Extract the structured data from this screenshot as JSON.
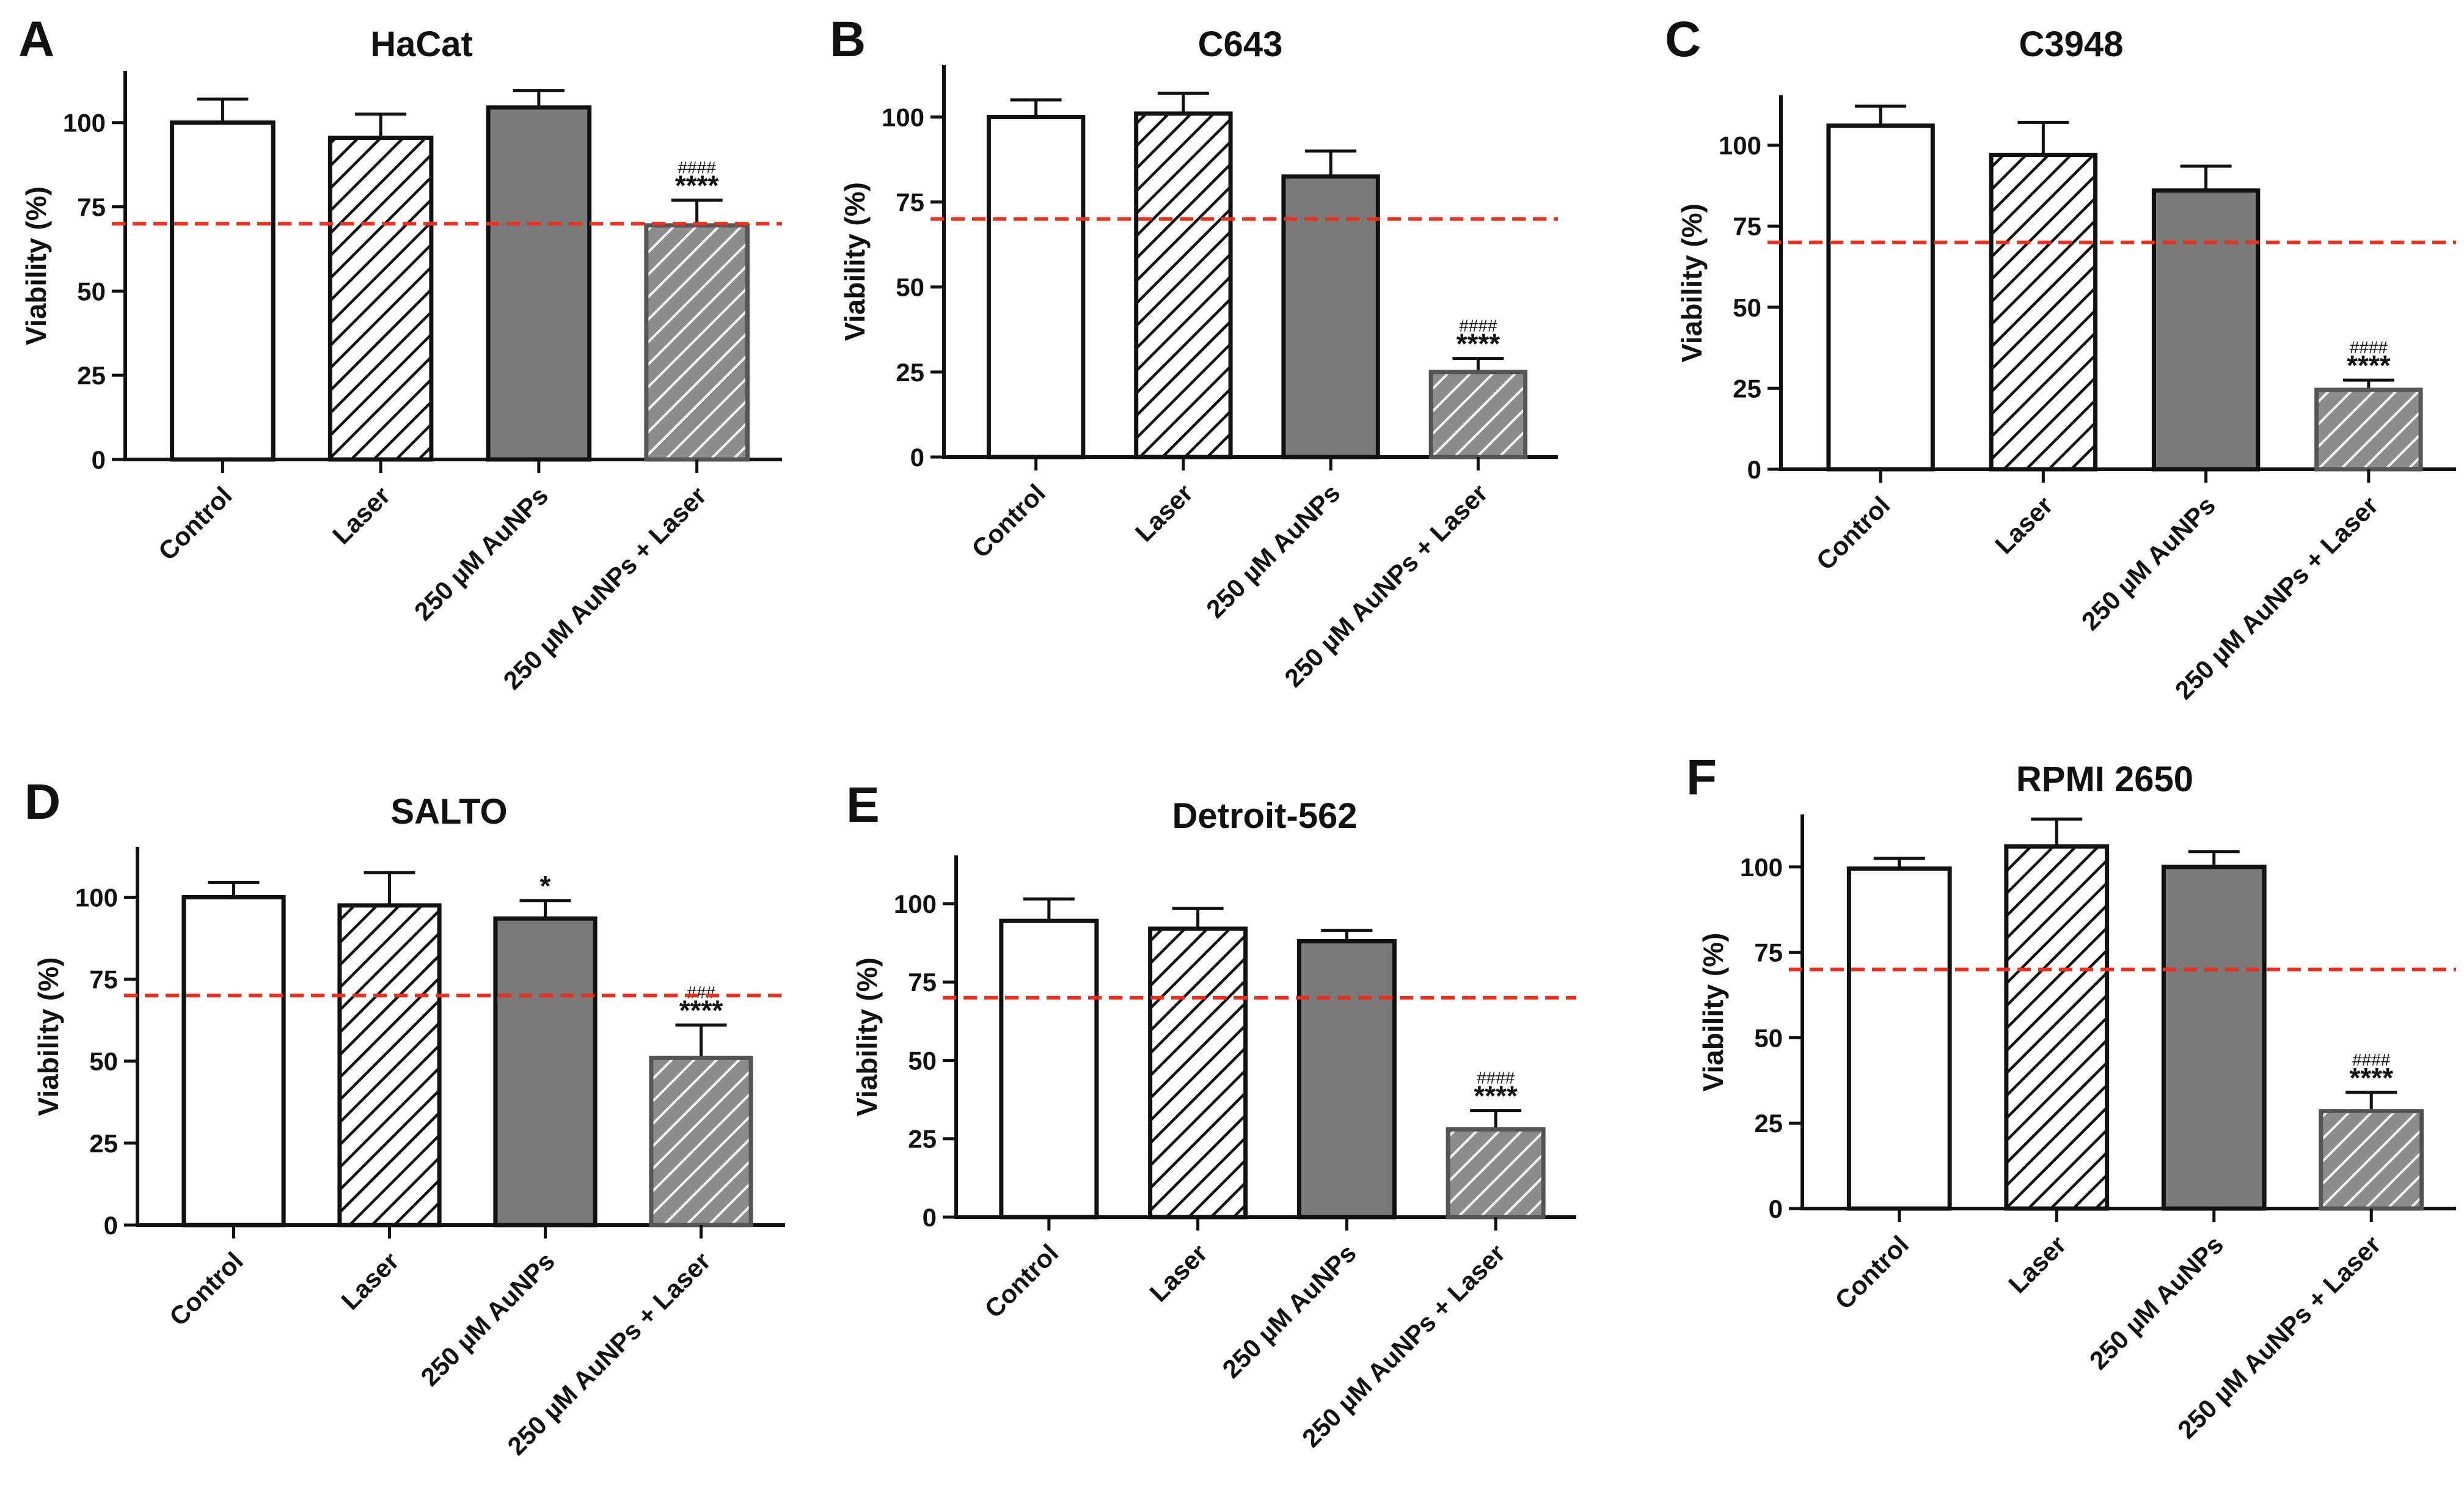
{
  "chart_data": [
    {
      "letter": "A",
      "title": "HaCat",
      "type": "bar",
      "ylabel": "Viability (%)",
      "ylim": [
        0,
        115
      ],
      "yticks": [
        0,
        25,
        50,
        75,
        100
      ],
      "threshold": 70,
      "categories": [
        "Control",
        "Laser",
        "250 µM AuNPs",
        "250 µM AuNPs + Laser"
      ],
      "values": [
        100,
        95.5,
        104.5,
        69.5
      ],
      "errors": [
        7,
        7,
        5,
        7.5
      ],
      "annotations": [
        "",
        "",
        "",
        "****"
      ],
      "hash_annotations": [
        "",
        "",
        "",
        "####"
      ],
      "fills": [
        "white",
        "hatch-white",
        "solid-gray",
        "hatch-gray"
      ]
    },
    {
      "letter": "B",
      "title": "C643",
      "type": "bar",
      "ylabel": "Viability (%)",
      "ylim": [
        0,
        115
      ],
      "yticks": [
        0,
        25,
        50,
        75,
        100
      ],
      "threshold": 70,
      "categories": [
        "Control",
        "Laser",
        "250 µM AuNPs",
        "250 µM AuNPs + Laser"
      ],
      "values": [
        100,
        101,
        82.5,
        25
      ],
      "errors": [
        5,
        6,
        7.5,
        4
      ],
      "annotations": [
        "",
        "",
        "",
        "****"
      ],
      "hash_annotations": [
        "",
        "",
        "",
        "####"
      ],
      "fills": [
        "white",
        "hatch-white",
        "solid-gray",
        "hatch-gray"
      ]
    },
    {
      "letter": "C",
      "title": "C3948",
      "type": "bar",
      "ylabel": "Viability (%)",
      "ylim": [
        0,
        115
      ],
      "yticks": [
        0,
        25,
        50,
        75,
        100
      ],
      "threshold": 70,
      "categories": [
        "Control",
        "Laser",
        "250 µM AuNPs",
        "250 µM AuNPs + Laser"
      ],
      "values": [
        106,
        97,
        86,
        24.5
      ],
      "errors": [
        6,
        10,
        7.5,
        3
      ],
      "annotations": [
        "",
        "",
        "",
        "****"
      ],
      "hash_annotations": [
        "",
        "",
        "",
        "####"
      ],
      "fills": [
        "white",
        "hatch-white",
        "solid-gray",
        "hatch-gray"
      ]
    },
    {
      "letter": "D",
      "title": "SALTO",
      "type": "bar",
      "ylabel": "Viability (%)",
      "ylim": [
        0,
        115
      ],
      "yticks": [
        0,
        25,
        50,
        75,
        100
      ],
      "threshold": 70,
      "categories": [
        "Control",
        "Laser",
        "250 µM AuNPs",
        "250 µM AuNPs + Laser"
      ],
      "values": [
        100,
        97.5,
        93.5,
        51
      ],
      "errors": [
        4.5,
        10,
        5.5,
        10
      ],
      "annotations": [
        "",
        "",
        "*",
        "****"
      ],
      "hash_annotations": [
        "",
        "",
        "",
        "###"
      ],
      "fills": [
        "white",
        "hatch-white",
        "solid-gray",
        "hatch-gray"
      ]
    },
    {
      "letter": "E",
      "title": "Detroit-562",
      "type": "bar",
      "ylabel": "Viability (%)",
      "ylim": [
        0,
        115
      ],
      "yticks": [
        0,
        25,
        50,
        75,
        100
      ],
      "threshold": 70,
      "categories": [
        "Control",
        "Laser",
        "250 µM AuNPs",
        "250 µM AuNPs + Laser"
      ],
      "values": [
        94.5,
        92,
        88,
        28
      ],
      "errors": [
        7,
        6.5,
        3.5,
        6
      ],
      "annotations": [
        "",
        "",
        "",
        "****"
      ],
      "hash_annotations": [
        "",
        "",
        "",
        "####"
      ],
      "fills": [
        "white",
        "hatch-white",
        "solid-gray",
        "hatch-gray"
      ]
    },
    {
      "letter": "F",
      "title": "RPMI 2650",
      "type": "bar",
      "ylabel": "Viability (%)",
      "ylim": [
        0,
        115
      ],
      "yticks": [
        0,
        25,
        50,
        75,
        100
      ],
      "threshold": 70,
      "categories": [
        "Control",
        "Laser",
        "250 µM AuNPs",
        "250 µM AuNPs + Laser"
      ],
      "values": [
        99.5,
        106,
        100,
        28.5
      ],
      "errors": [
        3,
        8,
        4.5,
        5.5
      ],
      "annotations": [
        "",
        "",
        "",
        "****"
      ],
      "hash_annotations": [
        "",
        "",
        "",
        "####"
      ],
      "fills": [
        "white",
        "hatch-white",
        "solid-gray",
        "hatch-gray"
      ]
    }
  ],
  "colors": {
    "bar_stroke": "#111111",
    "solid_gray": "#7a7a7a",
    "hatch_gray_bg": "#b9b9b9",
    "hatch_gray_stroke": "#555555",
    "threshold_line": "#e8311f",
    "axis": "#111111"
  }
}
